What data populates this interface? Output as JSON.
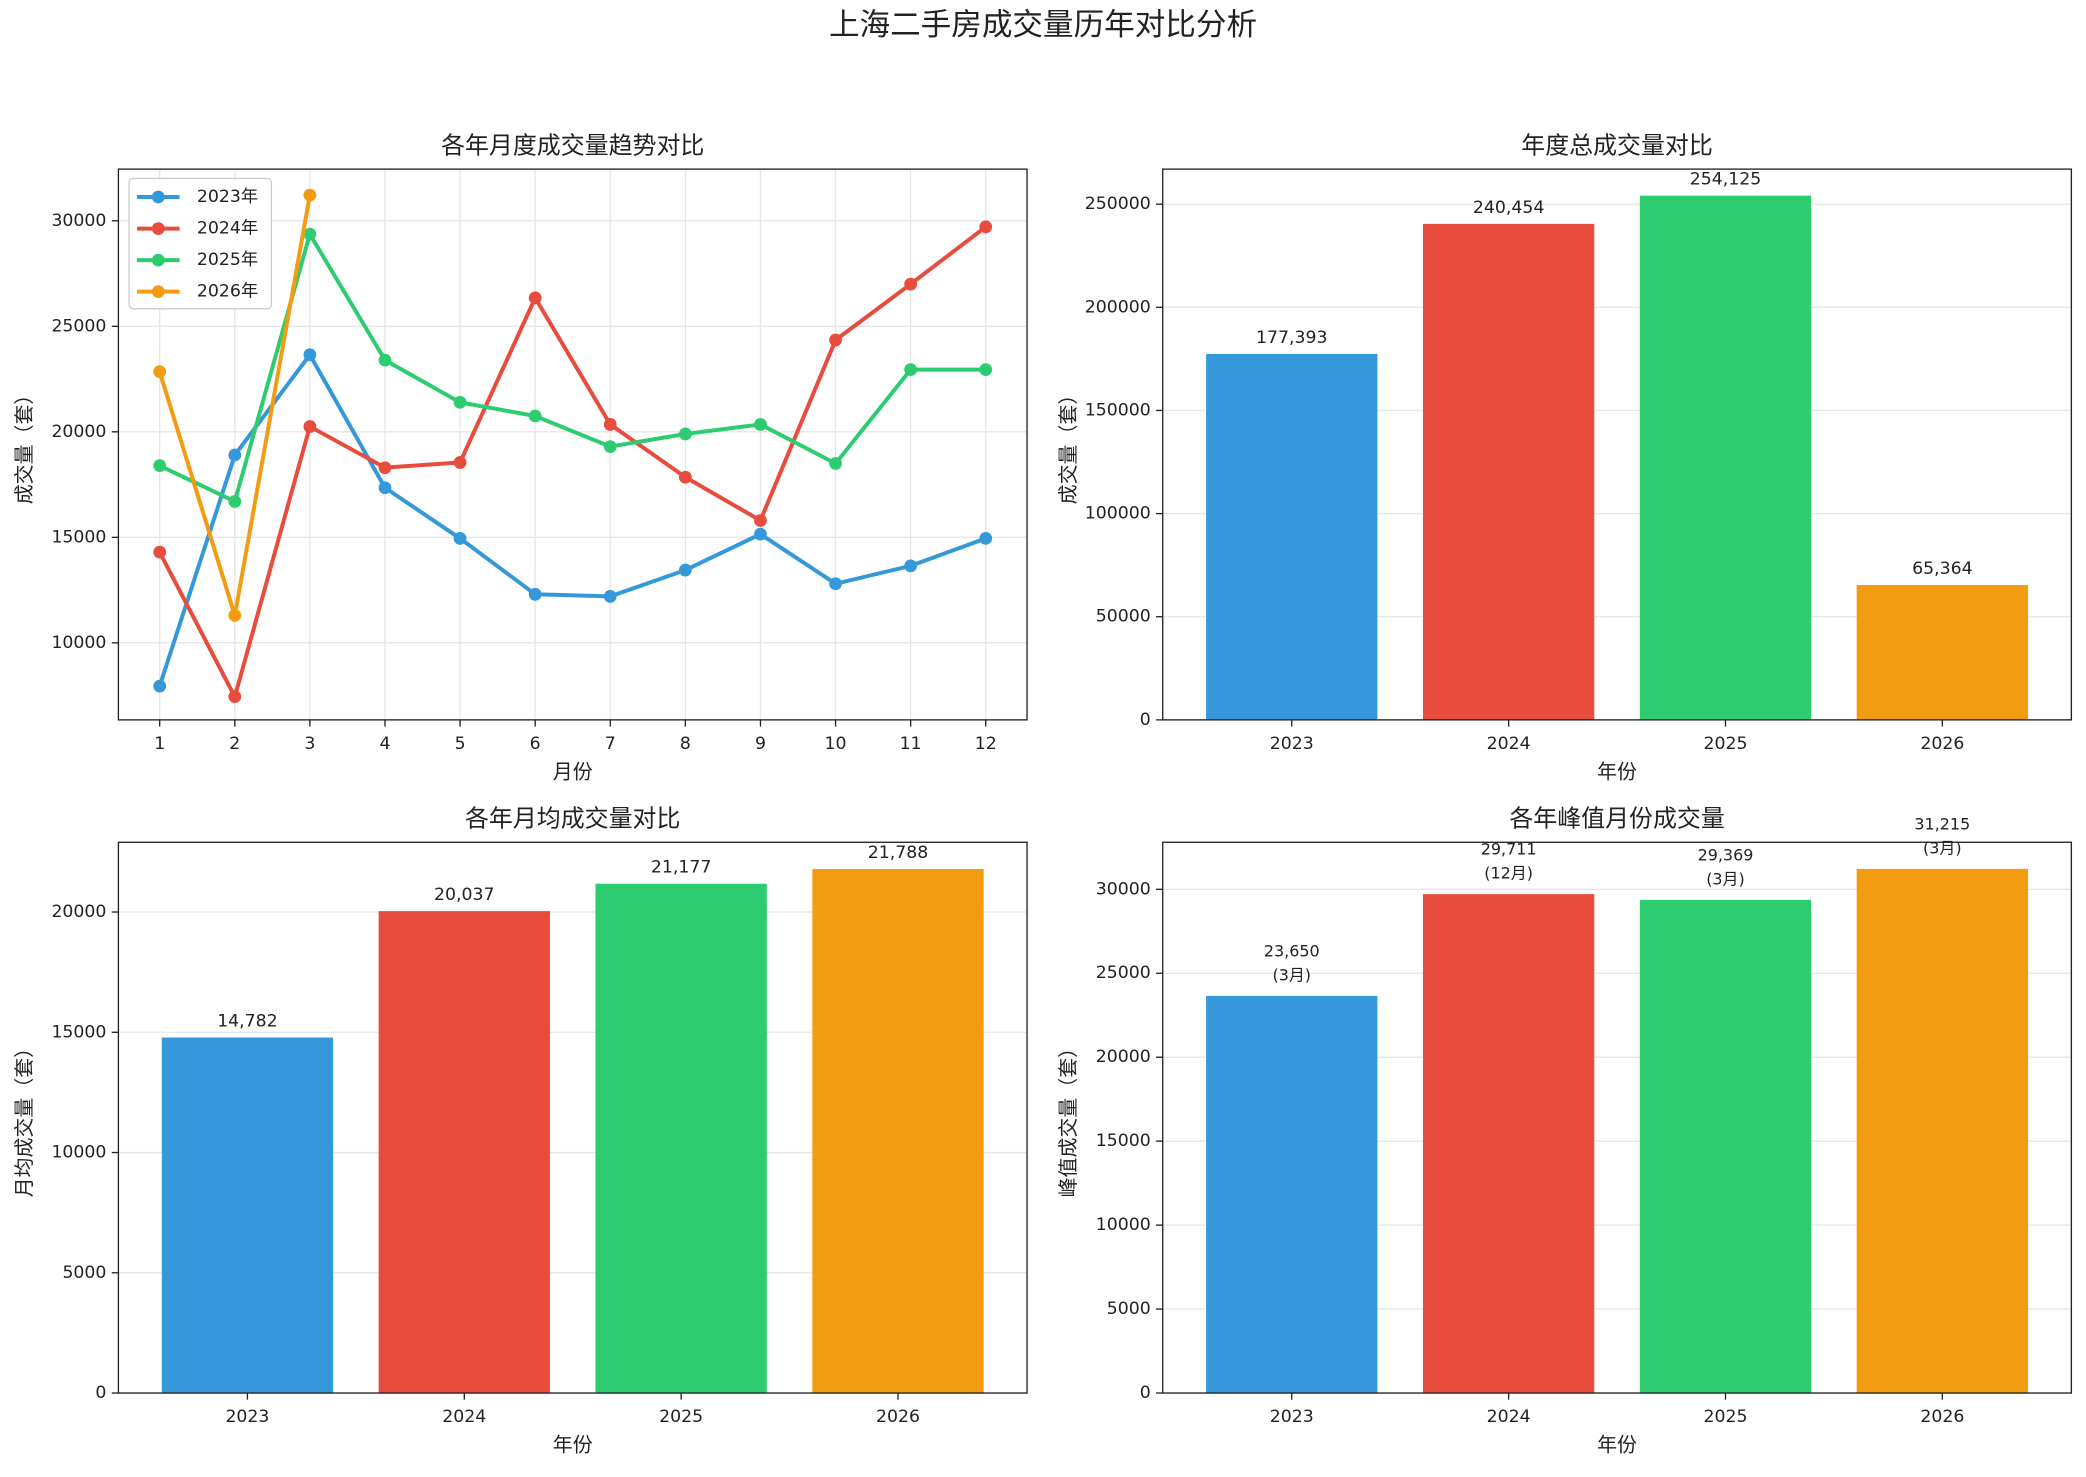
{
  "title": "上海二手房成交量历年对比分析",
  "chart_data": [
    {
      "type": "line",
      "title": "各年月度成交量趋势对比",
      "x_label": "月份",
      "y_label": "成交量（套）",
      "x": [
        1,
        2,
        3,
        4,
        5,
        6,
        7,
        8,
        9,
        10,
        11,
        12
      ],
      "xlim": [
        0.45,
        12.55
      ],
      "xticks": [
        1,
        2,
        3,
        4,
        5,
        6,
        7,
        8,
        9,
        10,
        11,
        12
      ],
      "ylim": [
        6350,
        32450
      ],
      "yticks": [
        10000,
        15000,
        20000,
        25000,
        30000
      ],
      "grid": true,
      "legend": "upper left",
      "series": [
        {
          "name": "2023年",
          "color": "#3498db",
          "values": [
            7950,
            18900,
            23650,
            17350,
            14950,
            12300,
            12200,
            13450,
            15150,
            12800,
            13650,
            14950
          ]
        },
        {
          "name": "2024年",
          "color": "#e74c3c",
          "values": [
            14300,
            7450,
            20250,
            18300,
            18550,
            26350,
            20350,
            17850,
            15800,
            24350,
            27000,
            29711
          ]
        },
        {
          "name": "2025年",
          "color": "#2ecc71",
          "values": [
            18400,
            16700,
            29369,
            23400,
            21400,
            20750,
            19300,
            19900,
            20350,
            18500,
            22950,
            22950
          ]
        },
        {
          "name": "2026年",
          "color": "#f39c12",
          "values": [
            22850,
            11300,
            31215,
            null,
            null,
            null,
            null,
            null,
            null,
            null,
            null,
            null
          ]
        }
      ]
    },
    {
      "type": "bar",
      "title": "年度总成交量对比",
      "x_label": "年份",
      "y_label": "成交量（套）",
      "categories": [
        "2023",
        "2024",
        "2025",
        "2026"
      ],
      "values": [
        177393,
        240454,
        254125,
        65364
      ],
      "value_labels": [
        "177,393",
        "240,454",
        "254,125",
        "65,364"
      ],
      "colors": [
        "#3498db",
        "#e74c3c",
        "#2ecc71",
        "#f39c12"
      ],
      "ylim": [
        0,
        267000
      ],
      "yticks": [
        0,
        50000,
        100000,
        150000,
        200000,
        250000
      ],
      "grid": true
    },
    {
      "type": "bar",
      "title": "各年月均成交量对比",
      "x_label": "年份",
      "y_label": "月均成交量（套）",
      "categories": [
        "2023",
        "2024",
        "2025",
        "2026"
      ],
      "values": [
        14782,
        20037,
        21177,
        21788
      ],
      "value_labels": [
        "14,782",
        "20,037",
        "21,177",
        "21,788"
      ],
      "colors": [
        "#3498db",
        "#e74c3c",
        "#2ecc71",
        "#f39c12"
      ],
      "ylim": [
        0,
        22900
      ],
      "yticks": [
        0,
        5000,
        10000,
        15000,
        20000
      ],
      "grid": true
    },
    {
      "type": "bar",
      "title": "各年峰值月份成交量",
      "x_label": "年份",
      "y_label": "峰值成交量（套）",
      "categories": [
        "2023",
        "2024",
        "2025",
        "2026"
      ],
      "values": [
        23650,
        29711,
        29369,
        31215
      ],
      "value_labels": [
        "23,650",
        "29,711",
        "29,369",
        "31,215"
      ],
      "annotations": [
        "(3月)",
        "(12月)",
        "(3月)",
        "(3月)"
      ],
      "colors": [
        "#3498db",
        "#e74c3c",
        "#2ecc71",
        "#f39c12"
      ],
      "ylim": [
        0,
        32800
      ],
      "yticks": [
        0,
        5000,
        10000,
        15000,
        20000,
        25000,
        30000
      ],
      "grid": true
    }
  ]
}
